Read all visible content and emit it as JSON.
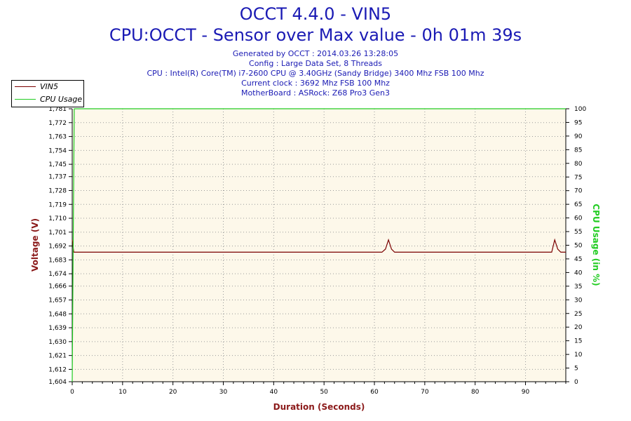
{
  "header": {
    "title": "OCCT 4.4.0 - VIN5",
    "subtitle": "CPU:OCCT - Sensor over Max value - 0h 01m 39s",
    "info_lines": [
      "Generated by OCCT : 2014.03.26 13:28:05",
      "Config : Large Data Set, 8 Threads",
      "CPU : Intel(R) Core(TM) i7-2600 CPU @ 3.40GHz (Sandy Bridge) 3400 Mhz FSB 100 Mhz",
      "Current clock : 3692 Mhz FSB 100 Mhz",
      "MotherBoard : ASRock: Z68 Pro3 Gen3"
    ]
  },
  "legend": {
    "items": [
      {
        "label": "VIN5",
        "color": "#7a0000"
      },
      {
        "label": "CPU Usage",
        "color": "#22cc22"
      }
    ]
  },
  "colors": {
    "plot_background": "#fdf8ea",
    "grid": "#9a9a9a",
    "voltage": "#7a0000",
    "cpu": "#22cc22",
    "left_axis_title": "#8b1a1a",
    "right_axis_title": "#22cc22",
    "x_axis_title": "#8b1a1a"
  },
  "chart_data": {
    "type": "line",
    "xlabel": "Duration (Seconds)",
    "ylabel_left": "Voltage (V)",
    "ylabel_right": "CPU Usage (in %)",
    "xlim": [
      0,
      98
    ],
    "ylim_left": [
      1.604,
      1.781
    ],
    "ylim_right": [
      0,
      100
    ],
    "grid": true,
    "legend_position": "top-left",
    "x_ticks": [
      0,
      10,
      20,
      30,
      40,
      50,
      60,
      70,
      80,
      90
    ],
    "x_tick_labels": [
      "0",
      "10",
      "20",
      "30",
      "40",
      "50",
      "60",
      "70",
      "80",
      "90"
    ],
    "y_left_ticks": [
      1.604,
      1.612,
      1.621,
      1.63,
      1.639,
      1.648,
      1.657,
      1.666,
      1.674,
      1.683,
      1.692,
      1.701,
      1.71,
      1.719,
      1.728,
      1.737,
      1.745,
      1.754,
      1.763,
      1.772,
      1.781
    ],
    "y_left_tick_labels": [
      "1,604",
      "1,612",
      "1,621",
      "1,630",
      "1,639",
      "1,648",
      "1,657",
      "1,666",
      "1,674",
      "1,683",
      "1,692",
      "1,701",
      "1,710",
      "1,719",
      "1,728",
      "1,737",
      "1,745",
      "1,754",
      "1,763",
      "1,772",
      "1,781"
    ],
    "y_right_ticks": [
      0,
      5,
      10,
      15,
      20,
      25,
      30,
      35,
      40,
      45,
      50,
      55,
      60,
      65,
      70,
      75,
      80,
      85,
      90,
      95,
      100
    ],
    "y_right_tick_labels": [
      "0",
      "5",
      "10",
      "15",
      "20",
      "25",
      "30",
      "35",
      "40",
      "45",
      "50",
      "55",
      "60",
      "65",
      "70",
      "75",
      "80",
      "85",
      "90",
      "95",
      "100"
    ],
    "series": [
      {
        "name": "VIN5",
        "axis": "left",
        "x": [
          0,
          0.3,
          0.6,
          1,
          61.5,
          62.2,
          62.8,
          63.4,
          64,
          95.2,
          95.8,
          96.4,
          97,
          98
        ],
        "y": [
          1.696,
          1.688,
          1.688,
          1.688,
          1.688,
          1.69,
          1.696,
          1.69,
          1.688,
          1.688,
          1.696,
          1.69,
          1.688,
          1.688
        ]
      },
      {
        "name": "CPU Usage",
        "axis": "right",
        "x": [
          0,
          0.2,
          0.4,
          98
        ],
        "y": [
          0,
          50,
          100,
          100
        ]
      }
    ]
  }
}
